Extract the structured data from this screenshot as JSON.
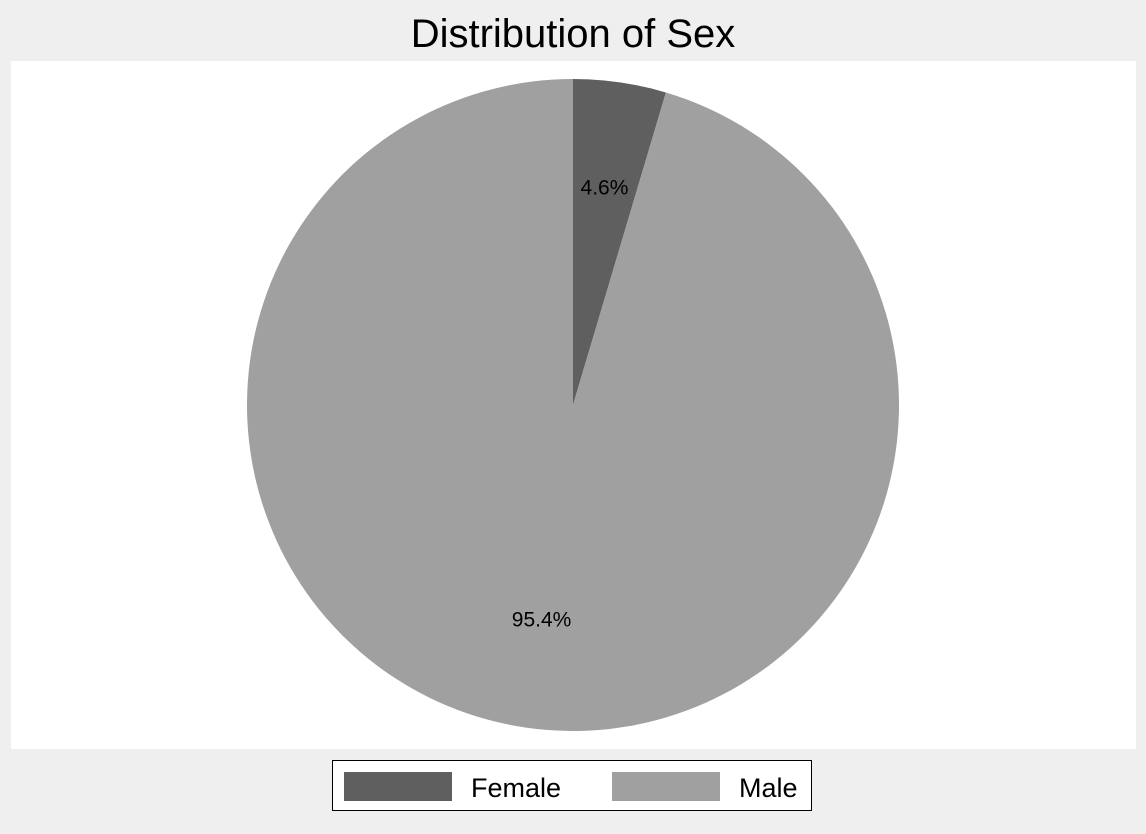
{
  "chart_data": {
    "type": "pie",
    "title": "Distribution of Sex",
    "start_angle_deg": 90,
    "direction": "clockwise",
    "slices": [
      {
        "label": "Female",
        "value": 4.6,
        "value_label": "4.6%",
        "color": "#5f5f5f"
      },
      {
        "label": "Male",
        "value": 95.4,
        "value_label": "95.4%",
        "color": "#a0a0a0"
      }
    ],
    "legend": {
      "position": "bottom",
      "items": [
        "Female",
        "Male"
      ]
    }
  }
}
